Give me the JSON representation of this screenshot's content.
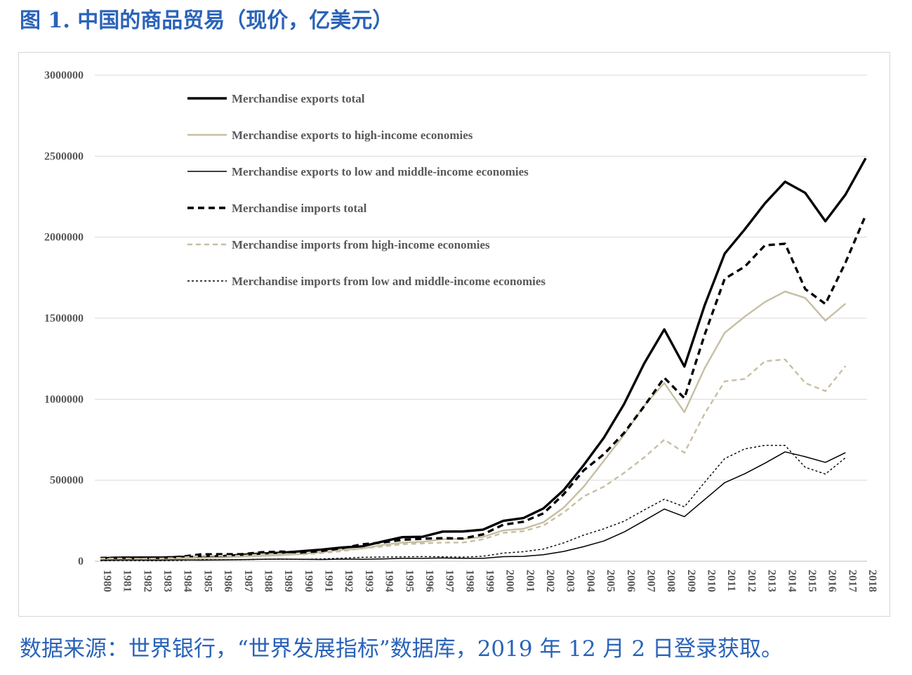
{
  "title": "图 1. 中国的商品贸易（现价，亿美元）",
  "source": "数据来源：世界银行，“世界发展指标”数据库，2019 年 12 月 2 日登录获取。",
  "chart_data": {
    "type": "line",
    "title": "",
    "xlabel": "",
    "ylabel": "",
    "ylim": [
      0,
      3000000
    ],
    "yticks": [
      0,
      500000,
      1000000,
      1500000,
      2000000,
      2500000,
      3000000
    ],
    "ytick_labels": [
      "0",
      "500000",
      "1000000",
      "1500000",
      "2000000",
      "2500000",
      "3000000"
    ],
    "grid": true,
    "legend_position": "top-left",
    "categories": [
      "1980",
      "1981",
      "1982",
      "1983",
      "1984",
      "1985",
      "1986",
      "1987",
      "1988",
      "1989",
      "1990",
      "1991",
      "1992",
      "1993",
      "1994",
      "1995",
      "1996",
      "1997",
      "1998",
      "1999",
      "2000",
      "2001",
      "2002",
      "2003",
      "2004",
      "2005",
      "2006",
      "2007",
      "2008",
      "2009",
      "2010",
      "2011",
      "2012",
      "2013",
      "2014",
      "2015",
      "2016",
      "2017",
      "2018"
    ],
    "series": [
      {
        "name": "Merchandise exports total",
        "color": "#000000",
        "style": "solid-thick",
        "values": [
          18100,
          22000,
          22300,
          22200,
          26100,
          27400,
          30900,
          39400,
          47500,
          52500,
          62100,
          71800,
          84900,
          91700,
          121000,
          148800,
          151000,
          182800,
          183700,
          194900,
          249200,
          266100,
          325600,
          438200,
          593300,
          762000,
          969000,
          1220000,
          1430700,
          1201600,
          1577800,
          1898400,
          2048700,
          2209000,
          2342300,
          2273500,
          2098200,
          2263300,
          2487000
        ]
      },
      {
        "name": "Merchandise exports to high-income economies",
        "color": "#c7bea3",
        "style": "solid",
        "values": [
          12000,
          14000,
          15000,
          15500,
          18000,
          20000,
          22000,
          28000,
          33000,
          37000,
          45000,
          56000,
          70000,
          78000,
          100000,
          115000,
          120000,
          135000,
          138000,
          150000,
          190000,
          200000,
          240000,
          330000,
          460000,
          620000,
          780000,
          960000,
          1100000,
          920000,
          1190000,
          1410000,
          1510000,
          1600000,
          1665000,
          1625000,
          1485000,
          1590000,
          null
        ]
      },
      {
        "name": "Merchandise exports to low and middle-income economies",
        "color": "#000000",
        "style": "solid-thin",
        "values": [
          6000,
          7000,
          7000,
          6700,
          8000,
          7000,
          8000,
          10000,
          12000,
          13000,
          12000,
          11000,
          13000,
          12000,
          14000,
          18000,
          18000,
          20000,
          18000,
          18000,
          28000,
          30000,
          40000,
          60000,
          90000,
          125000,
          180000,
          250000,
          322000,
          275000,
          380000,
          485000,
          540000,
          605000,
          675000,
          645000,
          610000,
          670000,
          null
        ]
      },
      {
        "name": "Merchandise imports total",
        "color": "#000000",
        "style": "dashed-thick",
        "values": [
          20000,
          22000,
          19300,
          21400,
          27400,
          42300,
          42900,
          43200,
          55300,
          59100,
          53300,
          63800,
          80600,
          104000,
          115600,
          132100,
          138800,
          142400,
          140200,
          165700,
          225100,
          243600,
          295200,
          412800,
          561200,
          660000,
          791500,
          956100,
          1132600,
          1005900,
          1396200,
          1743500,
          1818400,
          1950000,
          1959200,
          1679600,
          1587900,
          1843800,
          2135000
        ]
      },
      {
        "name": "Merchandise imports from high-income economies",
        "color": "#c7bea3",
        "style": "dashed",
        "values": [
          16000,
          17000,
          15000,
          17000,
          22000,
          33000,
          34000,
          34000,
          43000,
          46000,
          42000,
          50000,
          62000,
          80000,
          90000,
          105000,
          110000,
          115000,
          115000,
          135000,
          175000,
          185000,
          220000,
          300000,
          400000,
          460000,
          545000,
          640000,
          750000,
          670000,
          910000,
          1110000,
          1125000,
          1235000,
          1245000,
          1100000,
          1050000,
          1205000,
          null
        ]
      },
      {
        "name": "Merchandise imports from low and middle-income economies",
        "color": "#000000",
        "style": "dashed-thin",
        "values": [
          4000,
          5000,
          4300,
          4400,
          5400,
          9300,
          8900,
          9200,
          12300,
          13100,
          11300,
          13800,
          18600,
          24000,
          25600,
          27100,
          28800,
          27400,
          25200,
          30700,
          50100,
          58600,
          75200,
          112800,
          161200,
          200000,
          246500,
          316100,
          382600,
          335900,
          486200,
          633500,
          693400,
          715000,
          714200,
          579600,
          537900,
          638800,
          null
        ]
      }
    ]
  }
}
